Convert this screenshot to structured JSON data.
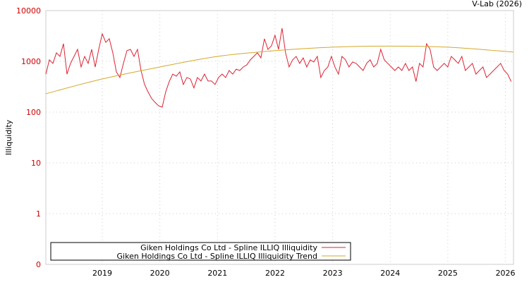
{
  "header": {
    "credit": "V-Lab (2026)"
  },
  "chart_data": {
    "type": "line",
    "title": "",
    "xlabel": "",
    "ylabel": "Illiquidity",
    "yscale": "log",
    "ylim": [
      0.1,
      10000
    ],
    "xlim": [
      2018.02,
      2026.14
    ],
    "grid": true,
    "y_ticks": [
      {
        "value": 0.1,
        "label": "0"
      },
      {
        "value": 1,
        "label": "1"
      },
      {
        "value": 10,
        "label": "10"
      },
      {
        "value": 100,
        "label": "100"
      },
      {
        "value": 1000,
        "label": "1000"
      },
      {
        "value": 10000,
        "label": "10000"
      }
    ],
    "x_ticks": [
      {
        "value": 2019,
        "label": "2019"
      },
      {
        "value": 2020,
        "label": "2020"
      },
      {
        "value": 2021,
        "label": "2021"
      },
      {
        "value": 2022,
        "label": "2022"
      },
      {
        "value": 2023,
        "label": "2023"
      },
      {
        "value": 2024,
        "label": "2024"
      },
      {
        "value": 2025,
        "label": "2025"
      },
      {
        "value": 2026,
        "label": "2026"
      }
    ],
    "legend_position": "bottom",
    "series": [
      {
        "name": "Giken Holdings Co Ltd - Spline ILLIQ Illiquidity",
        "color": "#dd2233",
        "x_start": 2018.02,
        "x_end": 2026.1,
        "values": [
          560,
          1070,
          910,
          1470,
          1250,
          2220,
          560,
          910,
          1250,
          1720,
          775,
          1250,
          910,
          1720,
          775,
          1720,
          3480,
          2370,
          2780,
          1470,
          620,
          480,
          910,
          1620,
          1720,
          1250,
          1720,
          660,
          350,
          250,
          185,
          155,
          133,
          125,
          250,
          400,
          560,
          510,
          620,
          350,
          480,
          450,
          300,
          480,
          410,
          560,
          410,
          410,
          350,
          480,
          560,
          480,
          660,
          560,
          700,
          660,
          775,
          850,
          1070,
          1250,
          1470,
          1170,
          2780,
          1720,
          2020,
          3260,
          1720,
          4500,
          1470,
          775,
          1070,
          1250,
          910,
          1170,
          775,
          1070,
          970,
          1250,
          480,
          660,
          775,
          1250,
          775,
          560,
          1250,
          1070,
          775,
          970,
          910,
          775,
          660,
          910,
          1070,
          775,
          910,
          1720,
          1070,
          910,
          775,
          660,
          775,
          660,
          910,
          660,
          775,
          400,
          910,
          775,
          2220,
          1720,
          775,
          660,
          775,
          910,
          775,
          1250,
          1070,
          910,
          1250,
          660,
          775,
          910,
          560,
          660,
          775,
          480,
          560,
          660,
          775,
          910,
          660,
          560,
          400
        ]
      },
      {
        "name": "Giken Holdings Co Ltd - Spline ILLIQ Illiquidity Trend",
        "color": "#d4a82a",
        "x": [
          2018.02,
          2019,
          2020,
          2021,
          2022,
          2023,
          2024,
          2025,
          2026.14
        ],
        "values": [
          230,
          450,
          775,
          1250,
          1620,
          1900,
          2000,
          1900,
          1520
        ]
      }
    ]
  }
}
